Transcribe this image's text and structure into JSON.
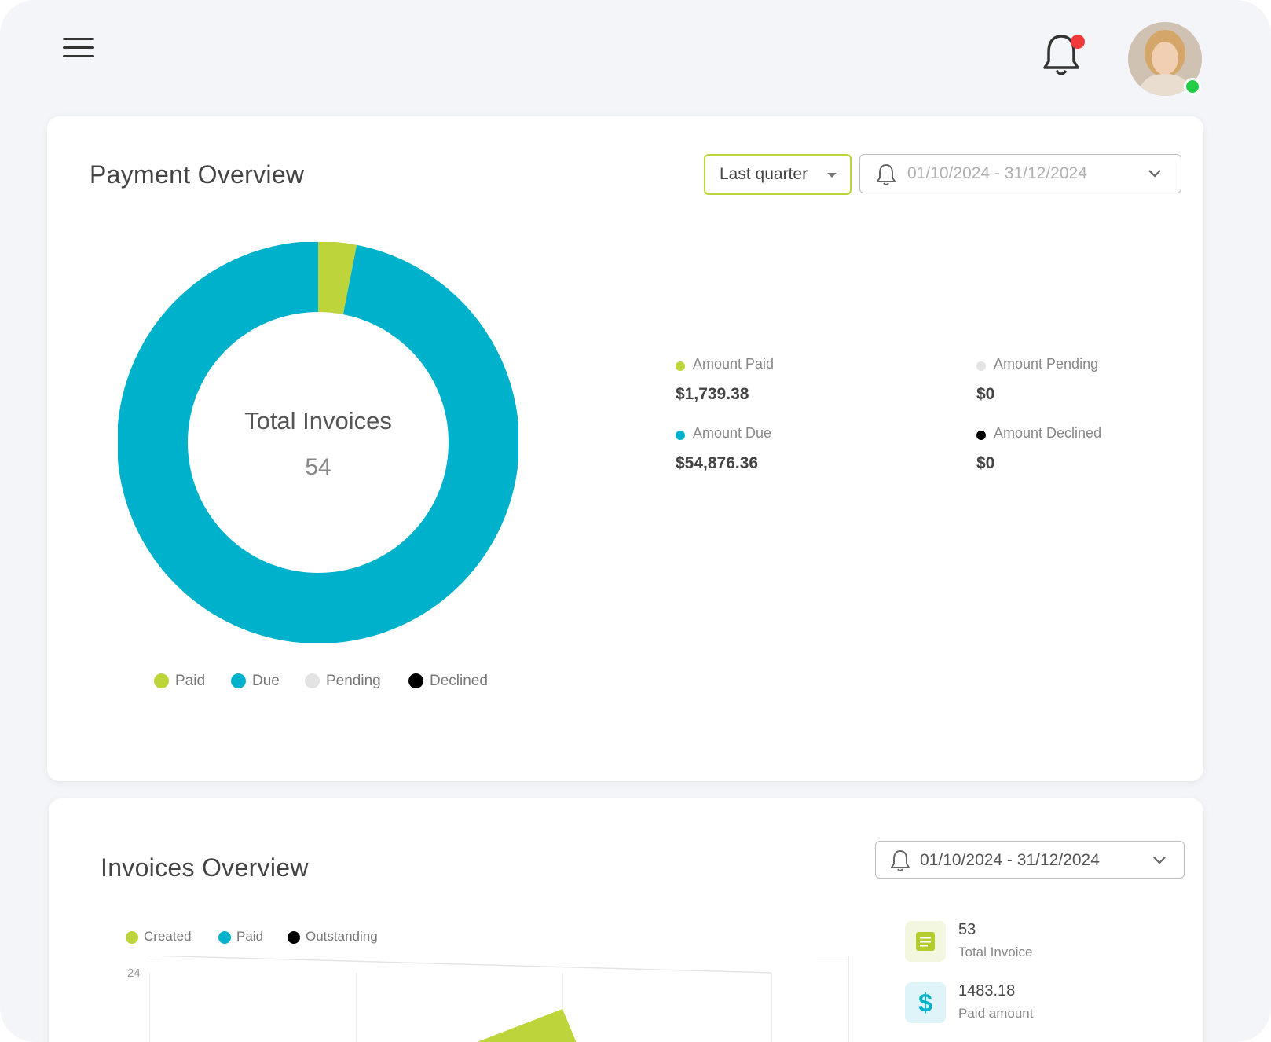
{
  "header": {
    "menu_icon": "hamburger-menu-icon",
    "bell_icon": "bell-icon",
    "avatar_icon": "user-avatar"
  },
  "payment_overview": {
    "title": "Payment Overview",
    "period_select": "Last quarter",
    "date_range": "01/10/2024 - 31/12/2024",
    "center_label": "Total Invoices",
    "center_value": "54",
    "stats": [
      {
        "label": "Amount Paid",
        "value": "$1,739.38",
        "color": "#bdd43a"
      },
      {
        "label": "Amount Pending",
        "value": "$0",
        "color": "#e3e3e3"
      },
      {
        "label": "Amount Due",
        "value": "$54,876.36",
        "color": "#00b1cb"
      },
      {
        "label": "Amount Declined",
        "value": "$0",
        "color": "#000000"
      }
    ],
    "chart_data": {
      "type": "pie",
      "labels": [
        "Paid",
        "Due",
        "Pending",
        "Declined"
      ],
      "values": [
        1739.38,
        54876.36,
        0,
        0
      ],
      "colors": [
        "#bdd43a",
        "#00b1cb",
        "#e3e3e3",
        "#000000"
      ],
      "legend": "bottom",
      "donut": true
    }
  },
  "invoices_overview": {
    "title": "Invoices Overview",
    "date_range": "01/10/2024 - 31/12/2024",
    "legend": [
      {
        "label": "Created",
        "color": "#bdd43a"
      },
      {
        "label": "Paid",
        "color": "#00b1cb"
      },
      {
        "label": "Outstanding",
        "color": "#000000"
      }
    ],
    "kpis": [
      {
        "value": "53",
        "label": "Total Invoice",
        "icon": "document-icon"
      },
      {
        "value": "1483.18",
        "label": "Paid amount",
        "icon": "dollar-icon"
      }
    ],
    "chart_data": {
      "type": "area",
      "ytick_visible": "24",
      "series": [
        {
          "name": "Created",
          "color": "#bdd43a"
        },
        {
          "name": "Paid",
          "color": "#00b1cb"
        },
        {
          "name": "Outstanding",
          "color": "#000000"
        }
      ]
    }
  }
}
